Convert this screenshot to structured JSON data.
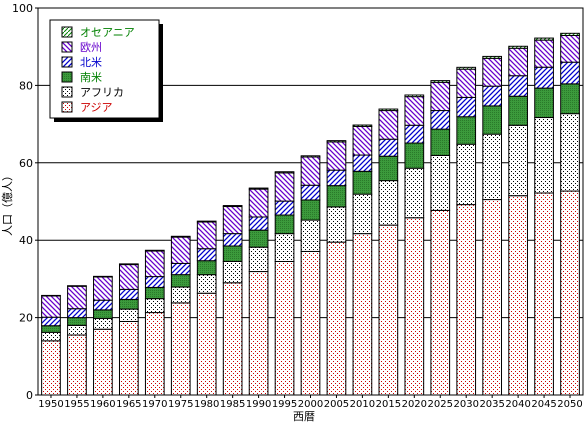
{
  "chart_data": {
    "type": "bar",
    "stacked": true,
    "xlabel": "西暦",
    "ylabel": "人口（億人）",
    "ylim": [
      0,
      100
    ],
    "yticks": [
      0,
      20,
      40,
      60,
      80,
      100
    ],
    "grid": true,
    "legend_position": "top-left",
    "categories": [
      "1950",
      "1955",
      "1960",
      "1965",
      "1970",
      "1975",
      "1980",
      "1985",
      "1990",
      "1995",
      "2000",
      "2005",
      "2010",
      "2015",
      "2020",
      "2025",
      "2030",
      "2035",
      "2040",
      "2045",
      "2050"
    ],
    "series": [
      {
        "name": "アジア",
        "color": "#cc0000",
        "pattern": "dots-red",
        "values": [
          14.0,
          15.5,
          17.0,
          19.0,
          21.3,
          23.8,
          26.3,
          29.0,
          31.9,
          34.5,
          37.1,
          39.5,
          41.7,
          43.9,
          45.8,
          47.7,
          49.2,
          50.5,
          51.5,
          52.2,
          52.7
        ]
      },
      {
        "name": "アフリカ",
        "color": "#000000",
        "pattern": "dots-black",
        "values": [
          2.2,
          2.5,
          2.8,
          3.2,
          3.6,
          4.1,
          4.8,
          5.5,
          6.3,
          7.2,
          8.1,
          9.1,
          10.2,
          11.5,
          12.8,
          14.2,
          15.6,
          16.9,
          18.2,
          19.5,
          20.0
        ]
      },
      {
        "name": "南米",
        "color": "#008000",
        "pattern": "solid-green",
        "values": [
          1.7,
          2.0,
          2.2,
          2.5,
          2.9,
          3.2,
          3.6,
          4.0,
          4.4,
          4.8,
          5.2,
          5.5,
          5.9,
          6.3,
          6.5,
          6.8,
          7.1,
          7.3,
          7.5,
          7.6,
          7.7
        ]
      },
      {
        "name": "北米",
        "color": "#0000cc",
        "pattern": "diag-blue",
        "values": [
          2.2,
          2.3,
          2.5,
          2.6,
          2.8,
          2.9,
          3.1,
          3.2,
          3.4,
          3.6,
          3.8,
          4.0,
          4.2,
          4.4,
          4.6,
          4.8,
          5.0,
          5.1,
          5.3,
          5.4,
          5.6
        ]
      },
      {
        "name": "欧州",
        "color": "#6600cc",
        "pattern": "diag-purple",
        "values": [
          5.5,
          5.8,
          6.0,
          6.4,
          6.6,
          6.8,
          6.9,
          7.0,
          7.2,
          7.3,
          7.3,
          7.3,
          7.4,
          7.4,
          7.4,
          7.3,
          7.3,
          7.2,
          7.1,
          7.0,
          6.9
        ]
      },
      {
        "name": "オセアニア",
        "color": "#008000",
        "pattern": "hatch-green",
        "values": [
          0.13,
          0.14,
          0.16,
          0.18,
          0.2,
          0.21,
          0.23,
          0.25,
          0.27,
          0.29,
          0.31,
          0.33,
          0.36,
          0.39,
          0.42,
          0.44,
          0.47,
          0.49,
          0.51,
          0.53,
          0.56
        ]
      }
    ]
  }
}
